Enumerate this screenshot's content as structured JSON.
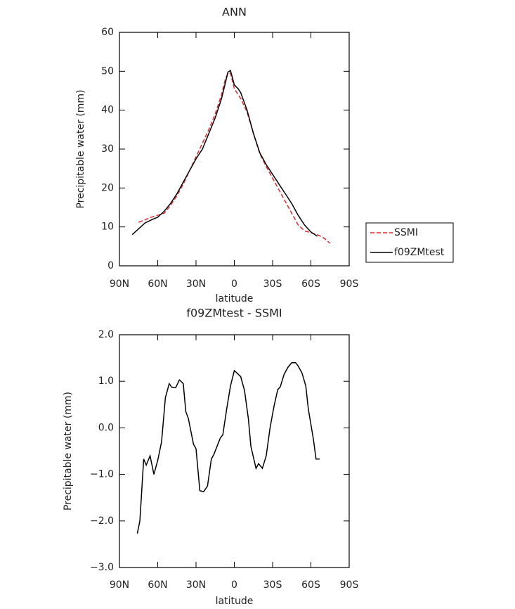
{
  "chart_data": [
    {
      "type": "line",
      "title": "ANN",
      "xlabel": "latitude",
      "ylabel": "Precipitable water (mm)",
      "x": [
        80,
        75,
        70,
        65,
        60,
        55,
        50,
        45,
        40,
        35,
        30,
        25,
        20,
        15,
        10,
        7,
        5,
        3,
        0,
        -3,
        -5,
        -10,
        -15,
        -20,
        -25,
        -30,
        -35,
        -40,
        -45,
        -50,
        -55,
        -60,
        -65,
        -70,
        -75
      ],
      "series": [
        {
          "name": "SSMI",
          "color": "#e8262b",
          "linestyle": "dashed",
          "values": [
            null,
            11.2,
            11.8,
            12.5,
            13,
            13.5,
            15.5,
            18,
            21,
            24.5,
            28,
            31.5,
            35,
            39,
            44,
            48,
            49.5,
            49.5,
            45.5,
            44,
            43,
            39.5,
            34,
            28.8,
            25.5,
            22.5,
            19.5,
            16.5,
            13.5,
            10.5,
            9,
            8.5,
            8,
            7.2,
            5.8
          ]
        },
        {
          "name": "f09ZMtest",
          "color": "#000000",
          "linestyle": "solid",
          "values": [
            8,
            9.5,
            11,
            11.8,
            12.5,
            14,
            16,
            18.5,
            21.5,
            24.5,
            27.5,
            30,
            34,
            38,
            43,
            47,
            49.8,
            50.2,
            46.5,
            45.5,
            44.5,
            40,
            34,
            29,
            26,
            23.5,
            21,
            18.5,
            16,
            13,
            10.5,
            8.7,
            7.6,
            null,
            null
          ]
        }
      ],
      "xlim": [
        90,
        -90
      ],
      "xticks": [
        {
          "value": 90,
          "label": "90N"
        },
        {
          "value": 60,
          "label": "60N"
        },
        {
          "value": 30,
          "label": "30N"
        },
        0,
        {
          "value": -30,
          "label": "30S"
        },
        {
          "value": -60,
          "label": "60S"
        },
        {
          "value": -90,
          "label": "90S"
        }
      ],
      "ylim": [
        0,
        60
      ],
      "yticks": [
        0,
        10,
        20,
        30,
        40,
        50,
        60
      ],
      "legend": "right"
    },
    {
      "type": "line",
      "title": "f09ZMtest - SSMI",
      "xlabel": "latitude",
      "ylabel": "Precipitable water (mm)",
      "x": [
        76,
        74,
        71,
        69,
        66,
        63,
        60,
        57,
        54,
        51,
        49,
        46,
        43,
        40,
        38,
        36,
        32,
        30,
        27,
        24,
        21,
        18,
        16,
        11,
        9,
        6,
        3,
        0,
        -2,
        -5,
        -8,
        -11,
        -13,
        -17,
        -19,
        -22,
        -25,
        -28,
        -31,
        -34,
        -36,
        -39,
        -42,
        -45,
        -48,
        -50,
        -53,
        -56,
        -58,
        -62,
        -64,
        -67
      ],
      "series": [
        {
          "name": "f09ZMtest - SSMI",
          "color": "#000000",
          "linestyle": "solid",
          "values": [
            -2.27,
            -2.0,
            -0.67,
            -0.8,
            -0.6,
            -1.0,
            -0.7,
            -0.3,
            0.65,
            0.95,
            0.87,
            0.86,
            1.03,
            0.95,
            0.35,
            0.2,
            -0.35,
            -0.45,
            -1.35,
            -1.37,
            -1.25,
            -0.67,
            -0.57,
            -0.22,
            -0.15,
            0.4,
            0.9,
            1.23,
            1.18,
            1.1,
            0.8,
            0.2,
            -0.4,
            -0.87,
            -0.77,
            -0.87,
            -0.6,
            0,
            0.45,
            0.82,
            0.88,
            1.15,
            1.3,
            1.4,
            1.4,
            1.33,
            1.18,
            0.9,
            0.4,
            -0.25,
            -0.67,
            -0.67
          ]
        }
      ],
      "xlim": [
        90,
        -90
      ],
      "xticks": [
        {
          "value": 90,
          "label": "90N"
        },
        {
          "value": 60,
          "label": "60N"
        },
        {
          "value": 30,
          "label": "30N"
        },
        0,
        {
          "value": -30,
          "label": "30S"
        },
        {
          "value": -60,
          "label": "60S"
        },
        {
          "value": -90,
          "label": "90S"
        }
      ],
      "ylim": [
        -3,
        2
      ],
      "yticks": [
        {
          "value": -3,
          "label": "−3.0"
        },
        {
          "value": -2,
          "label": "−2.0"
        },
        {
          "value": -1,
          "label": "−1.0"
        },
        {
          "value": 0,
          "label": "0.0"
        },
        {
          "value": 1,
          "label": "1.0"
        },
        {
          "value": 2,
          "label": "2.0"
        }
      ]
    }
  ]
}
